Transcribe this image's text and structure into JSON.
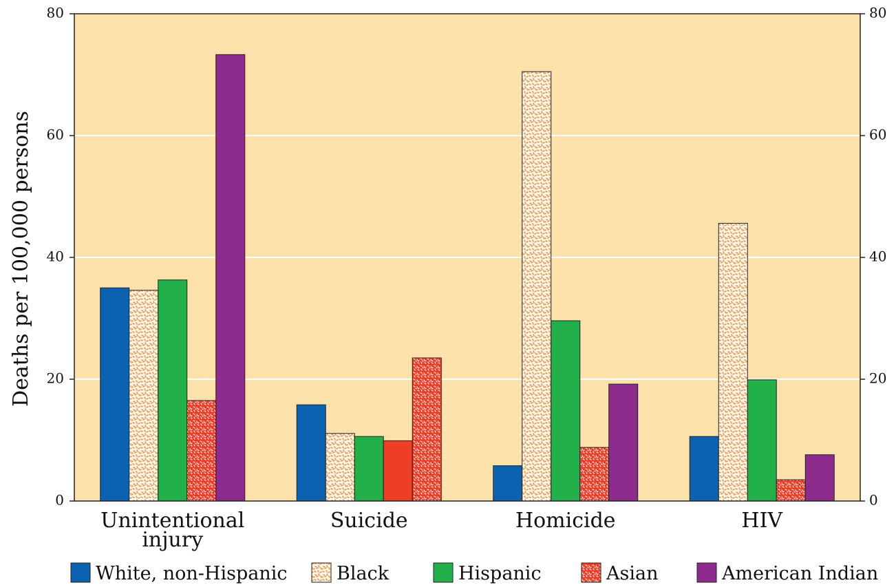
{
  "chart_data": {
    "type": "bar",
    "categories": [
      "Unintentional injury",
      "Suicide",
      "Homicide",
      "HIV"
    ],
    "category_label_lines": [
      [
        "Unintentional",
        "injury"
      ],
      [
        "Suicide"
      ],
      [
        "Homicide"
      ],
      [
        "HIV"
      ]
    ],
    "ylabel": "Deaths per 100,000 persons",
    "ylim": [
      0,
      80
    ],
    "yticks": [
      0,
      20,
      40,
      60,
      80
    ],
    "grid": true,
    "background_color": "#FDE1AA",
    "series": [
      {
        "name": "White, non-Hispanic",
        "color": "#0A62B0",
        "pattern": "solid",
        "values": [
          35.0,
          15.8,
          5.8,
          10.6
        ]
      },
      {
        "name": "Black",
        "color": "#E08A3C",
        "pattern": "speckle-orange",
        "values": [
          34.6,
          11.1,
          70.5,
          45.6
        ]
      },
      {
        "name": "Hispanic",
        "color": "#22B04B",
        "pattern": "solid",
        "values": [
          36.3,
          10.6,
          29.6,
          19.9
        ]
      },
      {
        "name": "Asian",
        "color": "#EE3E26",
        "pattern": "speckle-red",
        "values": [
          16.5,
          9.9,
          8.8,
          3.5
        ]
      },
      {
        "name": "American Indian",
        "color": "#8E2C8E",
        "pattern": "solid",
        "values": [
          73.3,
          23.5,
          19.2,
          7.6
        ]
      }
    ],
    "bar_pattern_override": {
      "Suicide": {
        "Asian": "solid",
        "American Indian": "speckle-red"
      }
    },
    "legend_position": "bottom"
  }
}
